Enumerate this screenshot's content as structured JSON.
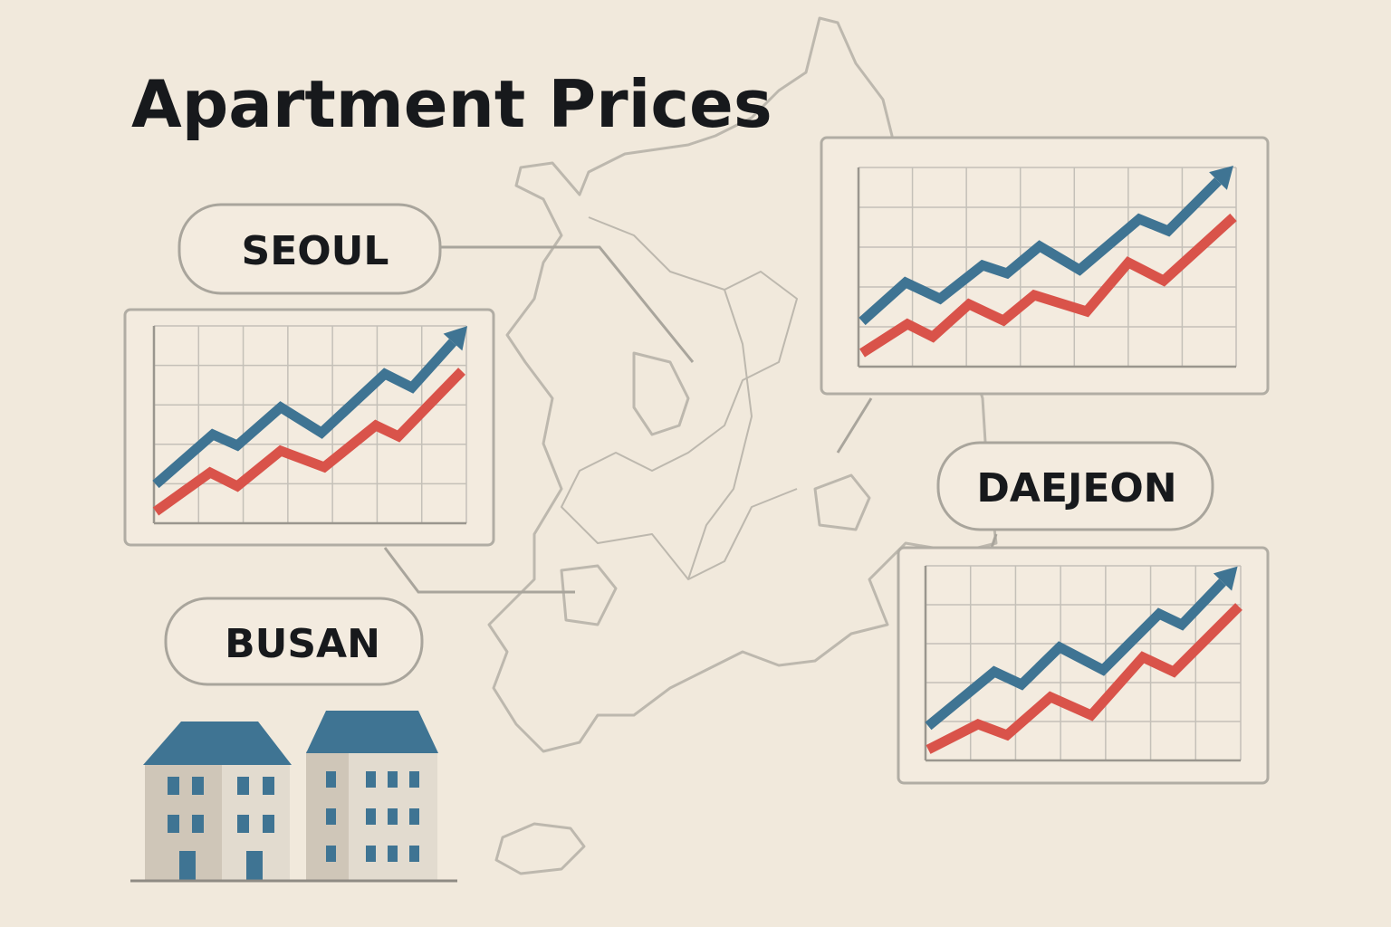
{
  "title": "Apartment Prices",
  "labels": [
    "SEOUL",
    "BUSAN",
    "DAEJEON"
  ]
}
